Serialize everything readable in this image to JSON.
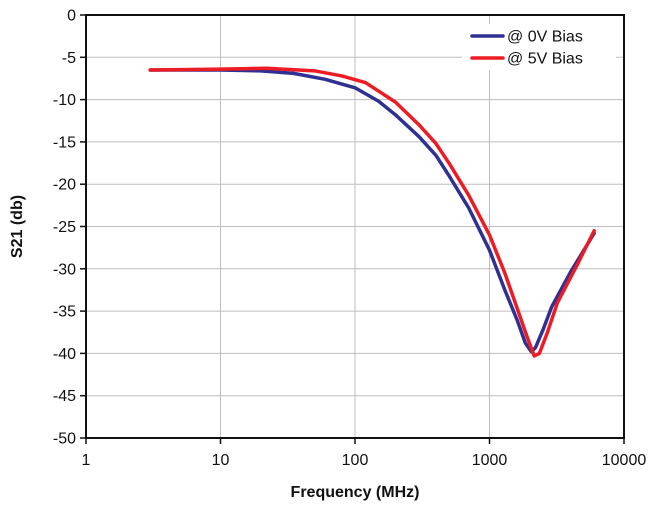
{
  "chart_data": {
    "type": "line",
    "xlabel": "Frequency (MHz)",
    "ylabel": "S21 (db)",
    "x_scale": "log",
    "xlim": [
      1,
      10000
    ],
    "ylim": [
      -50,
      0
    ],
    "x_ticks": [
      1,
      10,
      100,
      1000,
      10000
    ],
    "x_tick_labels": [
      "1",
      "10",
      "100",
      "1000",
      "10000"
    ],
    "y_ticks": [
      0,
      -5,
      -10,
      -15,
      -20,
      -25,
      -30,
      -35,
      -40,
      -45,
      -50
    ],
    "y_tick_labels": [
      "0",
      "-5",
      "-10",
      "-15",
      "-20",
      "-25",
      "-30",
      "-35",
      "-40",
      "-45",
      "-50"
    ],
    "grid": true,
    "legend_position": "top-right",
    "series": [
      {
        "name": "@ 0V Bias",
        "color": "#2e3192",
        "points": [
          [
            3,
            -6.5
          ],
          [
            10,
            -6.5
          ],
          [
            20,
            -6.6
          ],
          [
            35,
            -6.9
          ],
          [
            60,
            -7.6
          ],
          [
            100,
            -8.6
          ],
          [
            150,
            -10.2
          ],
          [
            200,
            -11.8
          ],
          [
            300,
            -14.4
          ],
          [
            400,
            -16.6
          ],
          [
            500,
            -19.0
          ],
          [
            700,
            -22.8
          ],
          [
            1000,
            -27.8
          ],
          [
            1300,
            -32.5
          ],
          [
            1600,
            -36.0
          ],
          [
            1850,
            -38.8
          ],
          [
            2050,
            -39.8
          ],
          [
            2200,
            -39.3
          ],
          [
            2500,
            -37.2
          ],
          [
            2900,
            -34.5
          ],
          [
            4000,
            -30.4
          ],
          [
            6000,
            -25.8
          ]
        ]
      },
      {
        "name": "@ 5V Bias",
        "color": "#ed1c24",
        "points": [
          [
            3,
            -6.5
          ],
          [
            10,
            -6.4
          ],
          [
            22,
            -6.3
          ],
          [
            50,
            -6.6
          ],
          [
            80,
            -7.2
          ],
          [
            120,
            -8.0
          ],
          [
            200,
            -10.3
          ],
          [
            300,
            -13.0
          ],
          [
            400,
            -15.2
          ],
          [
            500,
            -17.5
          ],
          [
            700,
            -21.3
          ],
          [
            1000,
            -26.0
          ],
          [
            1300,
            -30.5
          ],
          [
            1600,
            -34.6
          ],
          [
            1900,
            -38.0
          ],
          [
            2150,
            -40.3
          ],
          [
            2350,
            -40.0
          ],
          [
            2700,
            -37.5
          ],
          [
            3200,
            -34.0
          ],
          [
            4500,
            -29.5
          ],
          [
            6000,
            -25.5
          ]
        ]
      }
    ]
  }
}
